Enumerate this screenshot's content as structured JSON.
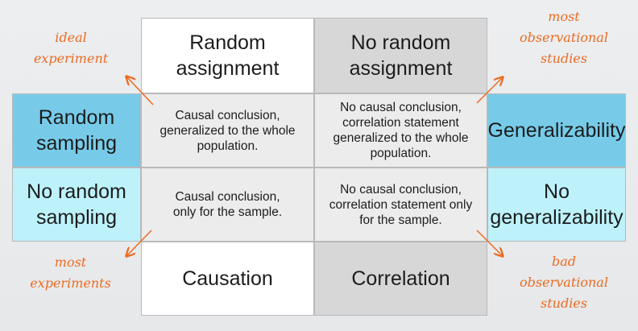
{
  "grid": {
    "col_headers": [
      "Random\nassignment",
      "No random\nassignment"
    ],
    "row_headers": [
      "Random\nsampling",
      "No random\nsampling"
    ],
    "right_labels": [
      "Generalizability",
      "No\ngeneralizability"
    ],
    "bottom_labels": [
      "Causation",
      "Correlation"
    ],
    "cells": [
      [
        "Causal conclusion,\ngeneralized to the whole\npopulation.",
        "No causal conclusion,\ncorrelation statement\ngeneralized to the whole\npopulation."
      ],
      [
        "Causal conclusion,\nonly for the sample.",
        "No causal conclusion,\ncorrelation statement only\nfor the sample."
      ]
    ]
  },
  "annotations": {
    "top_left": "ideal\nexperiment",
    "top_right": "most\nobservational\nstudies",
    "bottom_left": "most\nexperiments",
    "bottom_right": "bad\nobservational\nstudies"
  },
  "colors": {
    "annotation": "#ec6b21",
    "sampling_blue": "#77cbe9",
    "no_sampling_cyan": "#bdf2fb",
    "header_white": "#ffffff",
    "header_gray": "#d7d7d7"
  }
}
